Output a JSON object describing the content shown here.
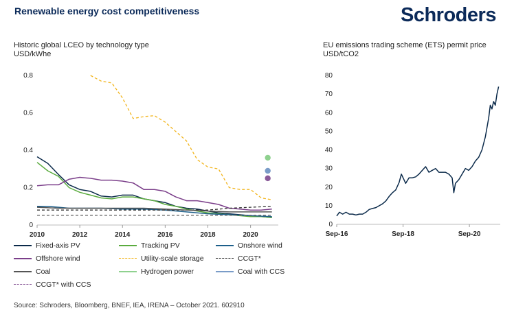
{
  "page": {
    "title": "Renewable energy cost competitiveness",
    "logo": "Schroders",
    "source": "Source: Schroders, Bloomberg, BNEF, IEA, IRENA – October 2021. 602910"
  },
  "chart_data": [
    {
      "type": "line",
      "title": "Historic global LCEO by technology type",
      "ylabel": "USD/kWhe",
      "xlim": [
        2010,
        2021.3
      ],
      "ylim": [
        0,
        0.8
      ],
      "xticks": [
        2010,
        2012,
        2014,
        2016,
        2018,
        2020
      ],
      "yticks": [
        0,
        0.2,
        0.4,
        0.6,
        0.8
      ],
      "ytick_labels": [
        "0",
        "0.2",
        "0.4",
        "0.6",
        "0.8"
      ],
      "legend_position": "bottom",
      "series": [
        {
          "name": "Fixed-axis PV",
          "color": "#0b2a4a",
          "style": "solid",
          "x": [
            2010,
            2010.5,
            2011,
            2011.5,
            2012,
            2012.5,
            2013,
            2013.5,
            2014,
            2014.5,
            2015,
            2015.5,
            2016,
            2016.5,
            2017,
            2017.5,
            2018,
            2018.5,
            2019,
            2019.5,
            2020,
            2020.5,
            2021
          ],
          "y": [
            0.365,
            0.33,
            0.27,
            0.215,
            0.19,
            0.18,
            0.155,
            0.15,
            0.16,
            0.16,
            0.14,
            0.13,
            0.12,
            0.1,
            0.09,
            0.085,
            0.075,
            0.065,
            0.06,
            0.055,
            0.05,
            0.045,
            0.04
          ]
        },
        {
          "name": "Tracking PV",
          "color": "#5aab3e",
          "style": "solid",
          "x": [
            2010,
            2010.5,
            2011,
            2011.5,
            2012,
            2012.5,
            2013,
            2013.5,
            2014,
            2014.5,
            2015,
            2015.5,
            2016,
            2016.5,
            2017,
            2017.5,
            2018,
            2018.5,
            2019,
            2019.5,
            2020,
            2020.5,
            2021
          ],
          "y": [
            0.335,
            0.29,
            0.26,
            0.2,
            0.175,
            0.16,
            0.145,
            0.14,
            0.15,
            0.15,
            0.14,
            0.13,
            0.11,
            0.1,
            0.085,
            0.075,
            0.065,
            0.06,
            0.055,
            0.05,
            0.045,
            0.045,
            0.04
          ]
        },
        {
          "name": "Onshore wind",
          "color": "#1d5f8a",
          "style": "solid",
          "x": [
            2010,
            2010.5,
            2011,
            2011.5,
            2012,
            2013,
            2014,
            2015,
            2016,
            2017,
            2018,
            2019,
            2020,
            2021
          ],
          "y": [
            0.1,
            0.1,
            0.095,
            0.09,
            0.09,
            0.09,
            0.085,
            0.085,
            0.08,
            0.07,
            0.06,
            0.055,
            0.05,
            0.045
          ]
        },
        {
          "name": "Offshore wind",
          "color": "#7b3f8a",
          "style": "solid",
          "x": [
            2010,
            2010.5,
            2011,
            2011.5,
            2012,
            2012.5,
            2013,
            2013.5,
            2014,
            2014.5,
            2015,
            2015.5,
            2016,
            2016.5,
            2017,
            2017.5,
            2018,
            2018.5,
            2019,
            2019.5,
            2020,
            2020.5,
            2021
          ],
          "y": [
            0.21,
            0.215,
            0.215,
            0.245,
            0.255,
            0.25,
            0.24,
            0.24,
            0.235,
            0.225,
            0.19,
            0.19,
            0.18,
            0.15,
            0.13,
            0.13,
            0.12,
            0.11,
            0.09,
            0.085,
            0.08,
            0.08,
            0.085
          ]
        },
        {
          "name": "Utility-scale storage",
          "color": "#f2b51d",
          "style": "dashed",
          "x": [
            2012.5,
            2013,
            2013.5,
            2014,
            2014.5,
            2015,
            2015.5,
            2016,
            2016.5,
            2017,
            2017.5,
            2018,
            2018.5,
            2019,
            2019.5,
            2020,
            2020.5,
            2021
          ],
          "y": [
            0.8,
            0.77,
            0.76,
            0.68,
            0.57,
            0.58,
            0.585,
            0.55,
            0.5,
            0.45,
            0.35,
            0.31,
            0.3,
            0.2,
            0.19,
            0.19,
            0.145,
            0.135
          ]
        },
        {
          "name": "CCGT*",
          "color": "#333333",
          "style": "dashed",
          "x": [
            2010,
            2011,
            2012,
            2013,
            2014,
            2015,
            2016,
            2017,
            2018,
            2019,
            2020,
            2021
          ],
          "y": [
            0.08,
            0.08,
            0.08,
            0.08,
            0.08,
            0.08,
            0.08,
            0.08,
            0.08,
            0.09,
            0.095,
            0.1
          ]
        },
        {
          "name": "Coal",
          "color": "#555555",
          "style": "solid",
          "x": [
            2010,
            2011,
            2012,
            2013,
            2014,
            2015,
            2016,
            2017,
            2018,
            2019,
            2020,
            2021
          ],
          "y": [
            0.095,
            0.09,
            0.09,
            0.09,
            0.09,
            0.09,
            0.085,
            0.08,
            0.075,
            0.07,
            0.07,
            0.07
          ]
        },
        {
          "name": "Hydrogen power",
          "color": "#8fd18f",
          "style": "marker",
          "x": [
            2021
          ],
          "y": [
            0.36
          ]
        },
        {
          "name": "Coal with CCS",
          "color": "#7a9cc8",
          "style": "marker",
          "x": [
            2021
          ],
          "y": [
            0.29
          ]
        },
        {
          "name": "CCGT* with CCS",
          "color": "#8a5a99",
          "style": "marker",
          "x": [
            2021
          ],
          "y": [
            0.25
          ]
        },
        {
          "name": "",
          "color": "#6b6b6b",
          "style": "dashed",
          "x": [
            2010,
            2021
          ],
          "y": [
            0.052,
            0.052
          ]
        }
      ]
    },
    {
      "type": "line",
      "title": "EU emissions trading scheme (ETS) permit price",
      "ylabel": "USD/tCO2",
      "xlim": [
        2016.67,
        2021.6
      ],
      "ylim": [
        0,
        80
      ],
      "xticks": [
        2016.67,
        2018.67,
        2020.67
      ],
      "xtick_labels": [
        "Sep-16",
        "Sep-18",
        "Sep-20"
      ],
      "yticks": [
        0,
        10,
        20,
        30,
        40,
        50,
        60,
        70,
        80
      ],
      "ytick_labels": [
        "0",
        "10",
        "20",
        "30",
        "40",
        "50",
        "60",
        "70",
        "80"
      ],
      "series": [
        {
          "name": "",
          "color": "#0b2a4a",
          "style": "solid",
          "x": [
            2016.67,
            2016.75,
            2016.85,
            2016.95,
            2017.05,
            2017.15,
            2017.25,
            2017.35,
            2017.45,
            2017.55,
            2017.65,
            2017.75,
            2017.85,
            2017.95,
            2018.05,
            2018.15,
            2018.25,
            2018.35,
            2018.45,
            2018.55,
            2018.62,
            2018.67,
            2018.75,
            2018.85,
            2018.95,
            2019.05,
            2019.15,
            2019.25,
            2019.35,
            2019.45,
            2019.55,
            2019.65,
            2019.75,
            2019.85,
            2019.95,
            2020.05,
            2020.15,
            2020.2,
            2020.25,
            2020.35,
            2020.45,
            2020.55,
            2020.65,
            2020.75,
            2020.85,
            2020.95,
            2021.05,
            2021.15,
            2021.2,
            2021.25,
            2021.3,
            2021.35,
            2021.4,
            2021.45,
            2021.5,
            2021.55
          ],
          "y": [
            4.5,
            6.5,
            5.5,
            6.5,
            5.5,
            5.5,
            5,
            5.5,
            5.5,
            6.5,
            8,
            8.5,
            9,
            10,
            11,
            12.5,
            15,
            17,
            18.5,
            22.5,
            27,
            25,
            22,
            25,
            25,
            25.5,
            27,
            29,
            31,
            28,
            29,
            30,
            28,
            28,
            28,
            27,
            25,
            17,
            22,
            24,
            27,
            30,
            29,
            31,
            34,
            36,
            40,
            47,
            52,
            57,
            64,
            62,
            66,
            64,
            70,
            74
          ]
        }
      ]
    }
  ]
}
